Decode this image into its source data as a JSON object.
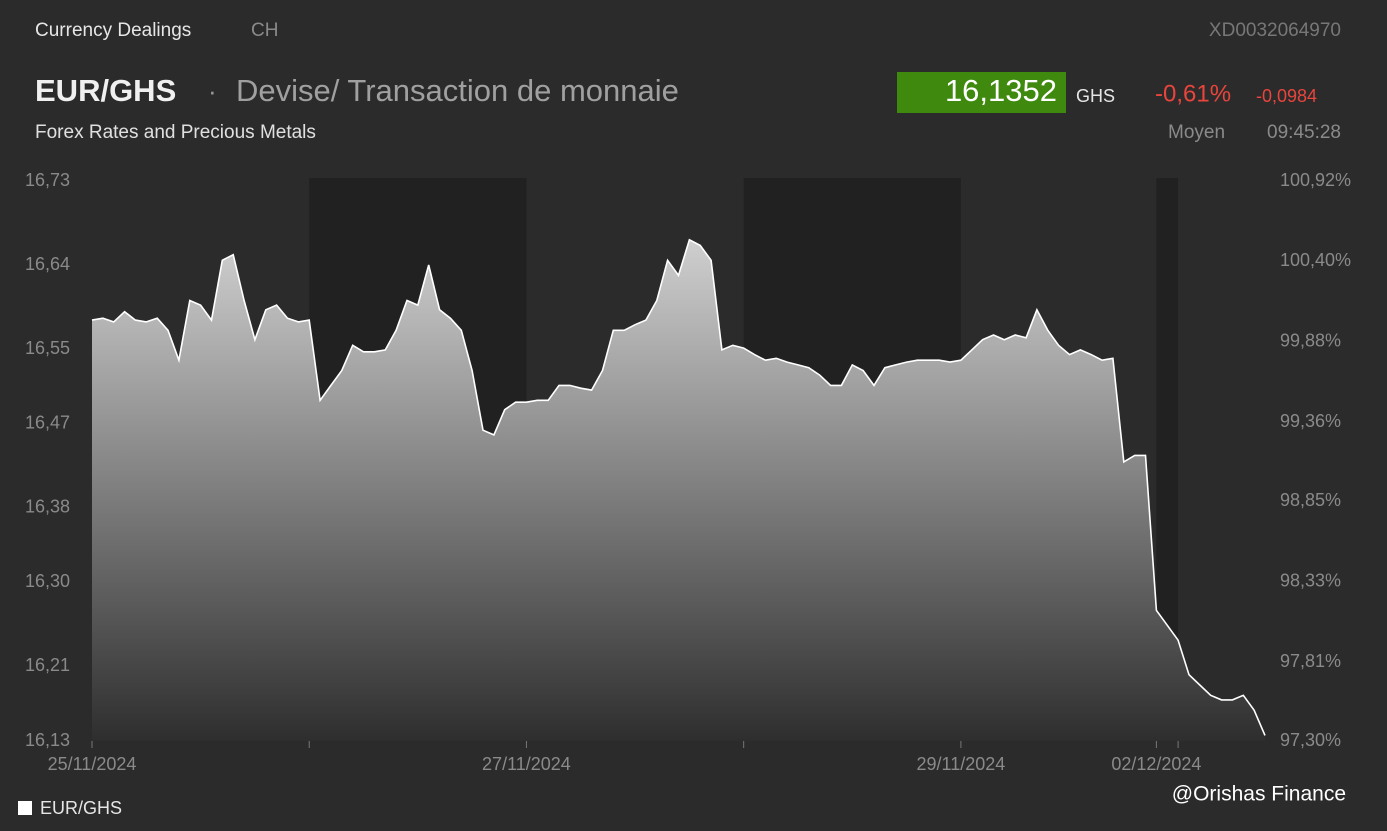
{
  "header": {
    "section": "Currency Dealings",
    "country": "CH",
    "code": "XD0032064970",
    "pair": "EUR/GHS",
    "separator": "·",
    "description": "Devise/ Transaction de monnaie",
    "category": "Forex Rates and Precious Metals",
    "price": "16,1352",
    "currency": "GHS",
    "change_pct": "-0,61%",
    "change_abs": "-0,0984",
    "price_type": "Moyen",
    "time": "09:45:28"
  },
  "chart_data": {
    "type": "area",
    "categories": [
      "25/11/2024",
      null,
      null,
      null,
      null,
      null,
      null,
      null,
      null,
      null,
      null,
      null,
      null,
      null,
      null,
      null,
      null,
      null,
      null,
      null,
      null,
      null,
      null,
      null,
      null,
      null,
      null,
      null,
      null,
      null,
      null,
      null,
      null,
      null,
      null,
      null,
      null,
      null,
      null,
      null,
      "27/11/2024",
      null,
      null,
      null,
      null,
      null,
      null,
      null,
      null,
      null,
      null,
      null,
      null,
      null,
      null,
      null,
      null,
      null,
      null,
      null,
      null,
      null,
      null,
      null,
      null,
      null,
      null,
      null,
      null,
      null,
      null,
      null,
      null,
      null,
      null,
      null,
      null,
      null,
      null,
      null,
      "29/11/2024",
      null,
      null,
      null,
      null,
      null,
      null,
      null,
      null,
      null,
      null,
      null,
      null,
      null,
      null,
      null,
      null,
      null,
      "02/12/2024",
      null,
      null,
      null,
      null,
      null,
      null,
      null,
      null,
      null,
      null
    ],
    "series": [
      {
        "name": "EUR/GHS",
        "color": "#ffffff",
        "values": [
          16.581,
          16.583,
          16.579,
          16.59,
          16.581,
          16.579,
          16.583,
          16.57,
          16.538,
          16.602,
          16.597,
          16.581,
          16.645,
          16.651,
          16.602,
          16.56,
          16.592,
          16.597,
          16.583,
          16.579,
          16.581,
          16.495,
          16.511,
          16.527,
          16.554,
          16.547,
          16.547,
          16.549,
          16.57,
          16.602,
          16.597,
          16.64,
          16.592,
          16.583,
          16.57,
          16.527,
          16.463,
          16.458,
          16.485,
          16.493,
          16.493,
          16.495,
          16.495,
          16.511,
          16.511,
          16.508,
          16.506,
          16.527,
          16.57,
          16.57,
          16.576,
          16.581,
          16.602,
          16.645,
          16.629,
          16.667,
          16.661,
          16.645,
          16.549,
          16.554,
          16.551,
          16.544,
          16.538,
          16.54,
          16.536,
          16.533,
          16.53,
          16.522,
          16.511,
          16.511,
          16.533,
          16.527,
          16.511,
          16.53,
          16.533,
          16.536,
          16.538,
          16.538,
          16.538,
          16.536,
          16.538,
          16.549,
          16.56,
          16.565,
          16.56,
          16.565,
          16.562,
          16.592,
          16.57,
          16.554,
          16.544,
          16.549,
          16.544,
          16.538,
          16.54,
          16.429,
          16.436,
          16.436,
          16.27,
          16.254,
          16.238,
          16.201,
          16.19,
          16.179,
          16.174,
          16.174,
          16.179,
          16.163,
          16.136
        ]
      }
    ],
    "ylim": [
      16.13,
      16.73
    ],
    "yticks": [
      {
        "value": 16.73,
        "label": "16,73"
      },
      {
        "value": 16.64,
        "label": "16,64"
      },
      {
        "value": 16.55,
        "label": "16,55"
      },
      {
        "value": 16.47,
        "label": "16,47"
      },
      {
        "value": 16.38,
        "label": "16,38"
      },
      {
        "value": 16.3,
        "label": "16,30"
      },
      {
        "value": 16.21,
        "label": "16,21"
      },
      {
        "value": 16.13,
        "label": "16,13"
      }
    ],
    "y2lim": [
      97.3,
      100.92
    ],
    "y2ticks": [
      {
        "value": 100.92,
        "label": "100,92%"
      },
      {
        "value": 100.4,
        "label": "100,40%"
      },
      {
        "value": 99.88,
        "label": "99,88%"
      },
      {
        "value": 99.36,
        "label": "99,36%"
      },
      {
        "value": 98.85,
        "label": "98,85%"
      },
      {
        "value": 98.33,
        "label": "98,33%"
      },
      {
        "value": 97.81,
        "label": "97,81%"
      },
      {
        "value": 97.3,
        "label": "97,30%"
      }
    ],
    "grid": false
  },
  "watermark": "@Orishas Finance"
}
